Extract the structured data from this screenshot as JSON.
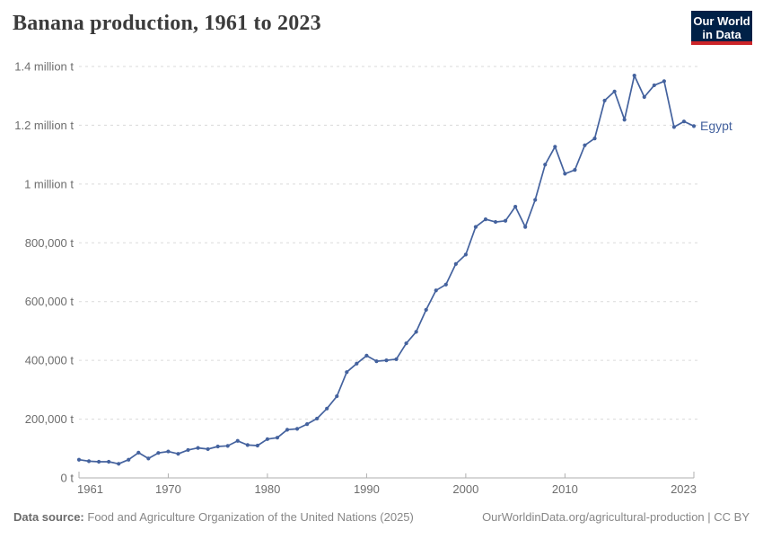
{
  "header": {
    "title": "Banana production, 1961 to 2023"
  },
  "logo": {
    "line1": "Our World",
    "line2": "in Data"
  },
  "colors": {
    "line": "#44629e",
    "grid": "#dadada",
    "axis": "#afafaf",
    "tick_label": "#6d6d6d",
    "title": "#3b3b3b",
    "footer_text": "#878787",
    "logo_bg": "#002147",
    "logo_red": "#cc2428"
  },
  "chart_data": {
    "type": "line",
    "title": "Banana production, 1961 to 2023",
    "xlabel": "",
    "ylabel": "",
    "grid": true,
    "legend_position": "end-of-line",
    "xlim": [
      1961,
      2023
    ],
    "ylim": [
      0,
      1400000
    ],
    "x_ticks": [
      1961,
      1970,
      1980,
      1990,
      2000,
      2010,
      2023
    ],
    "x_tick_labels": [
      "1961",
      "1970",
      "1980",
      "1990",
      "2000",
      "2010",
      "2023"
    ],
    "y_ticks": [
      0,
      200000,
      400000,
      600000,
      800000,
      1000000,
      1200000,
      1400000
    ],
    "y_tick_labels": [
      "0 t",
      "200,000 t",
      "400,000 t",
      "600,000 t",
      "800,000 t",
      "1 million t",
      "1.2 million t",
      "1.4 million t"
    ],
    "x": [
      1961,
      1962,
      1963,
      1964,
      1965,
      1966,
      1967,
      1968,
      1969,
      1970,
      1971,
      1972,
      1973,
      1974,
      1975,
      1976,
      1977,
      1978,
      1979,
      1980,
      1981,
      1982,
      1983,
      1984,
      1985,
      1986,
      1987,
      1988,
      1989,
      1990,
      1991,
      1992,
      1993,
      1994,
      1995,
      1996,
      1997,
      1998,
      1999,
      2000,
      2001,
      2002,
      2003,
      2004,
      2005,
      2006,
      2007,
      2008,
      2009,
      2010,
      2011,
      2012,
      2013,
      2014,
      2015,
      2016,
      2017,
      2018,
      2019,
      2020,
      2021,
      2022,
      2023
    ],
    "series": [
      {
        "name": "Egypt",
        "values": [
          62000,
          57000,
          55000,
          55000,
          48000,
          62000,
          86000,
          66000,
          85000,
          90000,
          82000,
          95000,
          102000,
          98000,
          107000,
          109000,
          126000,
          112000,
          110000,
          132000,
          137000,
          164000,
          167000,
          183000,
          202000,
          236000,
          278000,
          360000,
          389000,
          416000,
          397000,
          400000,
          404000,
          458000,
          497000,
          572000,
          638000,
          658000,
          728000,
          760000,
          854000,
          880000,
          871000,
          875000,
          923000,
          854000,
          946000,
          1066000,
          1127000,
          1035000,
          1048000,
          1132000,
          1155000,
          1284000,
          1315000,
          1219000,
          1369000,
          1296000,
          1336000,
          1350000,
          1194000,
          1213000,
          1197000
        ]
      }
    ]
  },
  "footer": {
    "source_label": "Data source:",
    "source_text": "Food and Agriculture Organization of the United Nations (2025)",
    "link_text": "OurWorldinData.org/agricultural-production | CC BY"
  }
}
